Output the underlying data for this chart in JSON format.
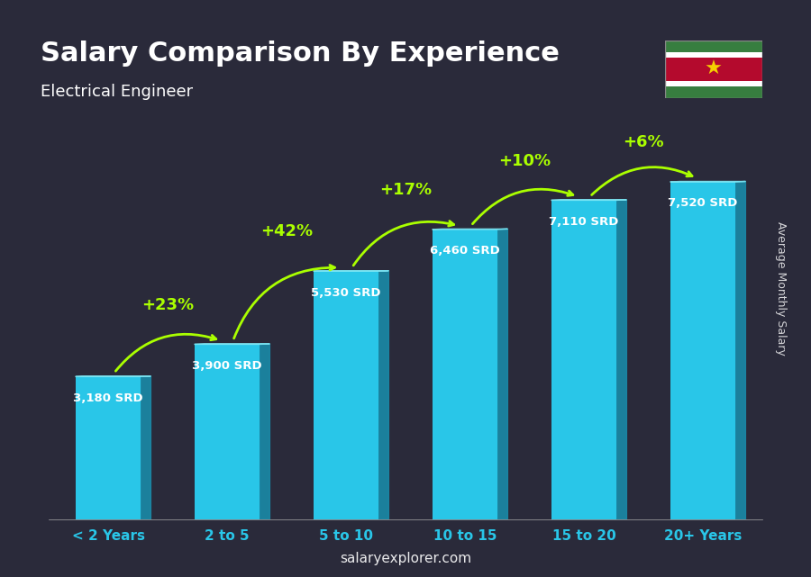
{
  "title": "Salary Comparison By Experience",
  "subtitle": "Electrical Engineer",
  "categories": [
    "< 2 Years",
    "2 to 5",
    "5 to 10",
    "10 to 15",
    "15 to 20",
    "20+ Years"
  ],
  "values": [
    3180,
    3900,
    5530,
    6460,
    7110,
    7520
  ],
  "salary_labels": [
    "3,180 SRD",
    "3,900 SRD",
    "5,530 SRD",
    "6,460 SRD",
    "7,110 SRD",
    "7,520 SRD"
  ],
  "pct_changes": [
    null,
    "+23%",
    "+42%",
    "+17%",
    "+10%",
    "+6%"
  ],
  "bar_color_top": "#00d4ff",
  "bar_color_bottom": "#0077aa",
  "bar_color_mid": "#00aadd",
  "background_color": "#1a1a2e",
  "title_color": "#ffffff",
  "subtitle_color": "#ffffff",
  "salary_label_color": "#ffffff",
  "pct_color": "#aaff00",
  "xlabel_color": "#00d4ff",
  "watermark": "salaryexplorer.com",
  "side_label": "Average Monthly Salary",
  "ylim": [
    0,
    9000
  ],
  "figsize": [
    9.0,
    6.41
  ],
  "dpi": 100
}
